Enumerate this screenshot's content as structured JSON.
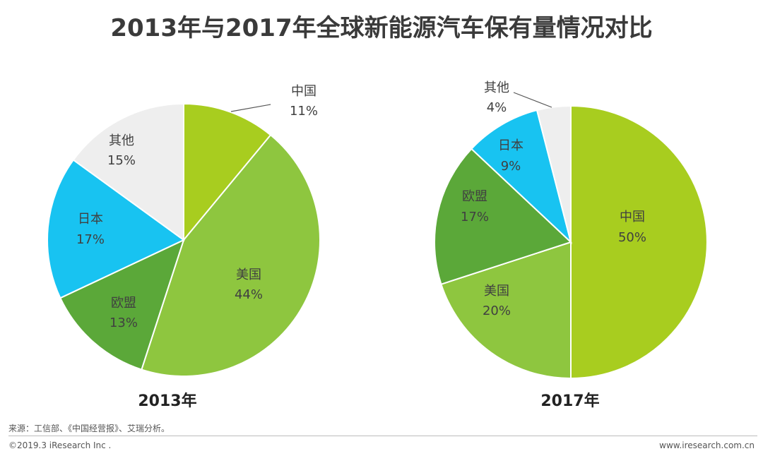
{
  "title": "2013年与2017年全球新能源汽车保有量情况对比",
  "colors": {
    "china": "#a8cd1f",
    "usa": "#8ec63f",
    "eu": "#5ba839",
    "japan": "#18c3f1",
    "other": "#eeeeee"
  },
  "chart_data": [
    {
      "type": "pie",
      "title": "2013年",
      "unit": "%",
      "slices": [
        {
          "key": "china",
          "label": "中国",
          "value": 11,
          "value_text": "11%"
        },
        {
          "key": "usa",
          "label": "美国",
          "value": 44,
          "value_text": "44%"
        },
        {
          "key": "eu",
          "label": "欧盟",
          "value": 13,
          "value_text": "13%"
        },
        {
          "key": "japan",
          "label": "日本",
          "value": 17,
          "value_text": "17%"
        },
        {
          "key": "other",
          "label": "其他",
          "value": 15,
          "value_text": "15%"
        }
      ]
    },
    {
      "type": "pie",
      "title": "2017年",
      "unit": "%",
      "slices": [
        {
          "key": "china",
          "label": "中国",
          "value": 50,
          "value_text": "50%"
        },
        {
          "key": "usa",
          "label": "美国",
          "value": 20,
          "value_text": "20%"
        },
        {
          "key": "eu",
          "label": "欧盟",
          "value": 17,
          "value_text": "17%"
        },
        {
          "key": "japan",
          "label": "日本",
          "value": 9,
          "value_text": "9%"
        },
        {
          "key": "other",
          "label": "其他",
          "value": 4,
          "value_text": "4%"
        }
      ]
    }
  ],
  "footer": {
    "source": "来源：工信部、《中国经营报》、艾瑞分析。",
    "copyright": "©2019.3 iResearch Inc .",
    "url": "www.iresearch.com.cn"
  }
}
